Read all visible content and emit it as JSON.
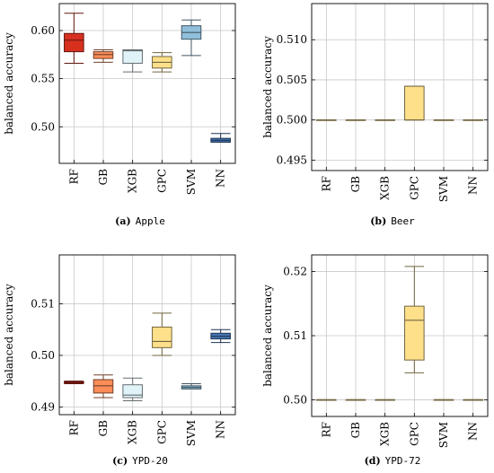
{
  "chart_data": [
    {
      "type": "box",
      "caption_label": "(a)",
      "caption_text": "Apple",
      "ylabel": "balanced accuracy",
      "ylim": [
        0.462,
        0.628
      ],
      "yticks": [
        0.5,
        0.55,
        0.6
      ],
      "ytick_labels": [
        "0.50",
        "0.55",
        "0.60"
      ],
      "grid": true,
      "categories": [
        "RF",
        "GB",
        "XGB",
        "GPC",
        "SVM",
        "NN"
      ],
      "colors": [
        "#d7301f",
        "#fc8d59",
        "#e0f3f8",
        "#fee08b",
        "#91bfdb",
        "#4575b4"
      ],
      "boxes": [
        {
          "min": 0.566,
          "q1": 0.578,
          "median": 0.59,
          "q3": 0.597,
          "max": 0.618
        },
        {
          "min": 0.567,
          "q1": 0.571,
          "median": 0.575,
          "q3": 0.578,
          "max": 0.58
        },
        {
          "min": 0.557,
          "q1": 0.566,
          "median": 0.579,
          "q3": 0.58,
          "max": 0.58
        },
        {
          "min": 0.557,
          "q1": 0.561,
          "median": 0.567,
          "q3": 0.573,
          "max": 0.577
        },
        {
          "min": 0.574,
          "q1": 0.591,
          "median": 0.598,
          "q3": 0.605,
          "max": 0.611
        },
        {
          "min": 0.484,
          "q1": 0.484,
          "median": 0.486,
          "q3": 0.488,
          "max": 0.493
        }
      ]
    },
    {
      "type": "box",
      "caption_label": "(b)",
      "caption_text": "Beer",
      "ylabel": "balanced accuracy",
      "ylim": [
        0.4937,
        0.5145
      ],
      "yticks": [
        0.495,
        0.5,
        0.505,
        0.51
      ],
      "ytick_labels": [
        "0.495",
        "0.500",
        "0.505",
        "0.510"
      ],
      "grid": true,
      "categories": [
        "RF",
        "GB",
        "XGB",
        "GPC",
        "SVM",
        "NN"
      ],
      "colors": [
        "#fee08b",
        "#fee08b",
        "#fee08b",
        "#fee08b",
        "#fee08b",
        "#fee08b"
      ],
      "boxes": [
        {
          "min": 0.5,
          "q1": 0.5,
          "median": 0.5,
          "q3": 0.5,
          "max": 0.5
        },
        {
          "min": 0.5,
          "q1": 0.5,
          "median": 0.5,
          "q3": 0.5,
          "max": 0.5
        },
        {
          "min": 0.5,
          "q1": 0.5,
          "median": 0.5,
          "q3": 0.5,
          "max": 0.5
        },
        {
          "min": 0.5,
          "q1": 0.5,
          "median": 0.5,
          "q3": 0.5042,
          "max": 0.5042
        },
        {
          "min": 0.5,
          "q1": 0.5,
          "median": 0.5,
          "q3": 0.5,
          "max": 0.5
        },
        {
          "min": 0.5,
          "q1": 0.5,
          "median": 0.5,
          "q3": 0.5,
          "max": 0.5
        }
      ]
    },
    {
      "type": "box",
      "caption_label": "(c)",
      "caption_text": "YPD-20",
      "ylabel": "balanced accuracy",
      "ylim": [
        0.4885,
        0.5195
      ],
      "yticks": [
        0.49,
        0.5,
        0.51
      ],
      "ytick_labels": [
        "0.49",
        "0.50",
        "0.51"
      ],
      "grid": true,
      "categories": [
        "RF",
        "GB",
        "XGB",
        "GPC",
        "SVM",
        "NN"
      ],
      "colors": [
        "#d7301f",
        "#fc8d59",
        "#e0f3f8",
        "#fee08b",
        "#91bfdb",
        "#4575b4"
      ],
      "boxes": [
        {
          "min": 0.4945,
          "q1": 0.4946,
          "median": 0.4948,
          "q3": 0.4949,
          "max": 0.495
        },
        {
          "min": 0.4918,
          "q1": 0.4927,
          "median": 0.4941,
          "q3": 0.4953,
          "max": 0.4962
        },
        {
          "min": 0.4912,
          "q1": 0.4918,
          "median": 0.4923,
          "q3": 0.4943,
          "max": 0.4956
        },
        {
          "min": 0.5,
          "q1": 0.5015,
          "median": 0.5027,
          "q3": 0.5055,
          "max": 0.5082
        },
        {
          "min": 0.4935,
          "q1": 0.4935,
          "median": 0.4938,
          "q3": 0.4941,
          "max": 0.4945
        },
        {
          "min": 0.5025,
          "q1": 0.5032,
          "median": 0.5037,
          "q3": 0.5043,
          "max": 0.505
        }
      ]
    },
    {
      "type": "box",
      "caption_label": "(d)",
      "caption_text": "YPD-72",
      "ylabel": "balanced accuracy",
      "ylim": [
        0.4974,
        0.5226
      ],
      "yticks": [
        0.5,
        0.51,
        0.52
      ],
      "ytick_labels": [
        "0.50",
        "0.51",
        "0.52"
      ],
      "grid": true,
      "categories": [
        "RF",
        "GB",
        "XGB",
        "GPC",
        "SVM",
        "NN"
      ],
      "colors": [
        "#fee08b",
        "#fee08b",
        "#fee08b",
        "#fee08b",
        "#fee08b",
        "#fee08b"
      ],
      "boxes": [
        {
          "min": 0.5,
          "q1": 0.5,
          "median": 0.5,
          "q3": 0.5,
          "max": 0.5
        },
        {
          "min": 0.5,
          "q1": 0.5,
          "median": 0.5,
          "q3": 0.5,
          "max": 0.5
        },
        {
          "min": 0.5,
          "q1": 0.5,
          "median": 0.5,
          "q3": 0.5,
          "max": 0.5
        },
        {
          "min": 0.5042,
          "q1": 0.5062,
          "median": 0.5124,
          "q3": 0.5146,
          "max": 0.5208
        },
        {
          "min": 0.5,
          "q1": 0.5,
          "median": 0.5,
          "q3": 0.5,
          "max": 0.5
        },
        {
          "min": 0.5,
          "q1": 0.5,
          "median": 0.5,
          "q3": 0.5,
          "max": 0.5
        }
      ]
    }
  ]
}
